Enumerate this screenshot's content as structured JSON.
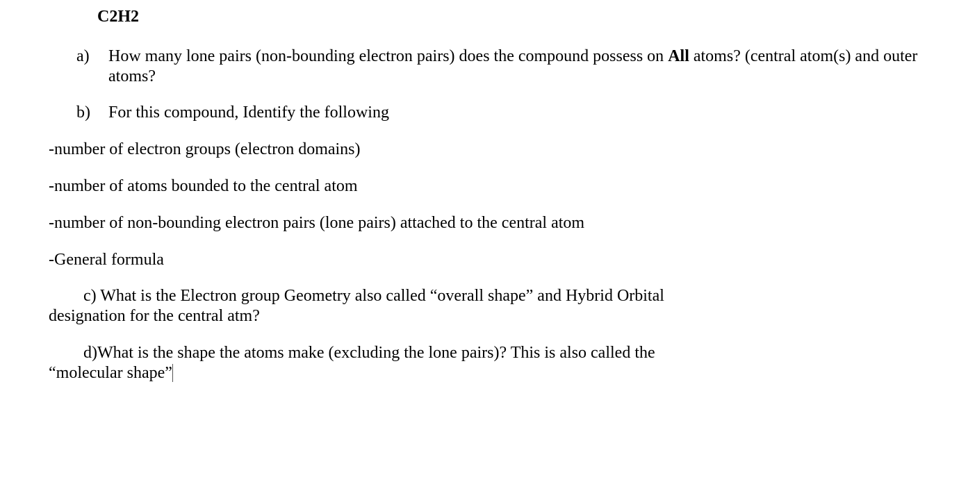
{
  "compound": "C2H2",
  "item_a": {
    "marker": "a)",
    "text_part1": "How many lone pairs (non-bounding electron pairs) does the compound possess on ",
    "text_bold": "All",
    "text_part2": " atoms? (central atom(s) and outer atoms?"
  },
  "item_b": {
    "marker": "b)",
    "text": " For this compound, Identify the following",
    "sub1": "-number of electron groups (electron domains)",
    "sub2": "-number of atoms bounded to the central atom",
    "sub3": "-number of non-bounding electron pairs (lone pairs) attached to the central atom",
    "sub4": "-General formula"
  },
  "item_c": {
    "line1": "c) What is the Electron group Geometry also called “overall shape” and Hybrid Orbital",
    "line2": "designation for the central atm?"
  },
  "item_d": {
    "line1": "d)What is the shape the atoms make (excluding the lone pairs)? This is also called the",
    "line2": "“molecular shape”"
  }
}
